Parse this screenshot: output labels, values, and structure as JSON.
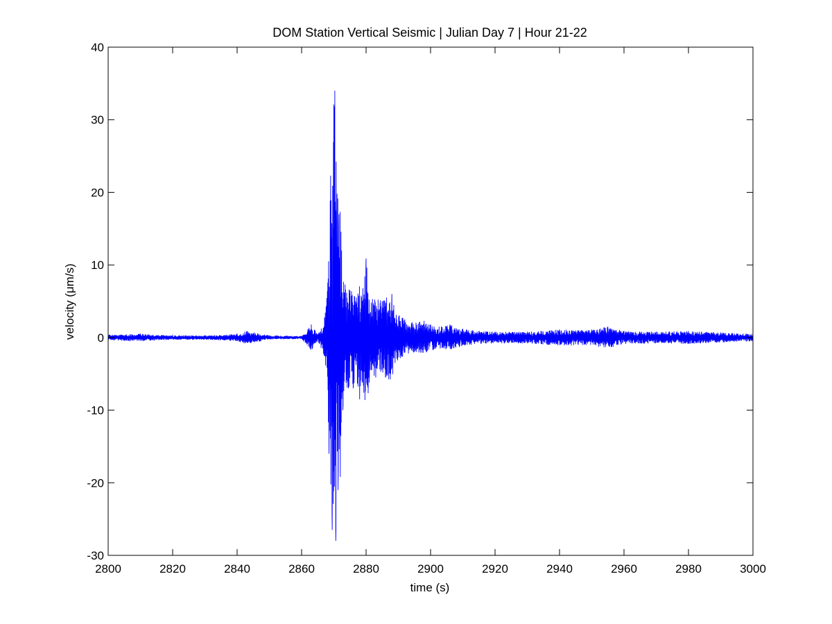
{
  "chart_data": {
    "type": "line",
    "title": "DOM Station Vertical Seismic | Julian Day 7 | Hour 21-22",
    "xlabel": "time (s)",
    "ylabel": "velocity (μm/s)",
    "xlim": [
      2800,
      3000
    ],
    "ylim": [
      -30,
      40
    ],
    "xticks": [
      2800,
      2820,
      2840,
      2860,
      2880,
      2900,
      2920,
      2940,
      2960,
      2980,
      3000
    ],
    "yticks": [
      -30,
      -20,
      -10,
      0,
      10,
      20,
      30,
      40
    ],
    "grid": false,
    "line_color": "#0000ff",
    "series": [
      {
        "x": [
          2800,
          2810,
          2820,
          2830,
          2840,
          2843,
          2850,
          2860,
          2863,
          2865,
          2867,
          2868,
          2868.5,
          2869,
          2869.5,
          2870,
          2870.3,
          2870.6,
          2871,
          2871.3,
          2871.6,
          2872,
          2872.4,
          2872.8,
          2873.5,
          2874.5,
          2875,
          2876,
          2877,
          2878,
          2879,
          2880,
          2881,
          2882,
          2883,
          2885,
          2886,
          2888,
          2889,
          2892,
          2895,
          2898,
          2900,
          2903,
          2906,
          2910,
          2915,
          2920,
          2930,
          2940,
          2950,
          2955,
          2960,
          2970,
          2980,
          2990,
          3000
        ],
        "y": [
          0.4,
          0.5,
          0.3,
          0.3,
          0.5,
          0.9,
          0.3,
          0.2,
          1.8,
          0.5,
          -2.5,
          6.4,
          -16,
          22.3,
          -26.5,
          32.1,
          34,
          -28,
          19.8,
          -21,
          17,
          -19.2,
          12,
          -10,
          7.3,
          -7,
          6.5,
          -7,
          5.5,
          -8.5,
          6.8,
          10.9,
          -6.2,
          5.3,
          -5.5,
          5,
          -5.5,
          6,
          -3.5,
          2.5,
          -2,
          2.3,
          1.8,
          -1.5,
          1.8,
          1.2,
          0.9,
          0.8,
          0.8,
          1.1,
          1.1,
          1.5,
          0.9,
          0.8,
          0.9,
          0.7,
          0.5
        ]
      }
    ]
  }
}
